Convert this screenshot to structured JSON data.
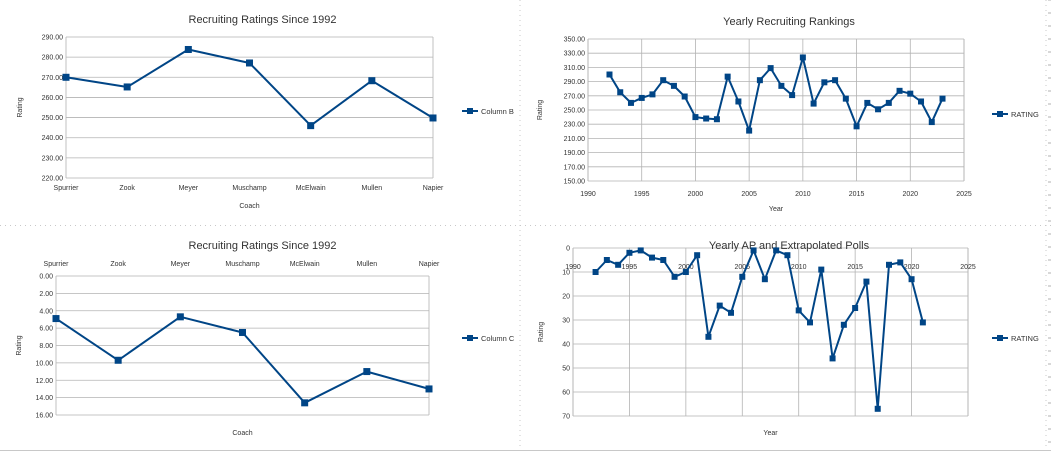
{
  "colors": {
    "series": "#004586",
    "grid": "#b3b3b3",
    "text": "#333333"
  },
  "chart_data": [
    {
      "type": "line",
      "title": "Recruiting Ratings Since 1992",
      "xlabel": "Coach",
      "ylabel": "Rating",
      "categories": [
        "Spurrier",
        "Zook",
        "Meyer",
        "Muschamp",
        "McElwain",
        "Mullen",
        "Napier"
      ],
      "series": [
        {
          "name": "Column B",
          "values": [
            270.0,
            265.2,
            283.8,
            277.1,
            246.0,
            268.3,
            249.8
          ]
        }
      ],
      "ylim": [
        220,
        290
      ],
      "yticks": [
        "220.00",
        "230.00",
        "240.00",
        "250.00",
        "260.00",
        "270.00",
        "280.00",
        "290.00"
      ],
      "grid": true,
      "legend": "right"
    },
    {
      "type": "line",
      "title": "Yearly Recruiting Rankings",
      "xlabel": "Year",
      "ylabel": "Rating",
      "x": [
        1992,
        1993,
        1994,
        1995,
        1996,
        1997,
        1998,
        1999,
        2000,
        2001,
        2002,
        2003,
        2004,
        2005,
        2006,
        2007,
        2008,
        2009,
        2010,
        2011,
        2012,
        2013,
        2014,
        2015,
        2016,
        2017,
        2018,
        2019,
        2020,
        2021,
        2022,
        2023
      ],
      "series": [
        {
          "name": "RATING",
          "values": [
            300,
            275,
            260,
            267,
            272,
            292,
            284,
            269,
            240,
            238,
            237,
            297,
            262,
            221,
            292,
            309,
            284,
            271,
            324,
            259,
            289,
            292,
            266,
            227,
            260,
            251,
            260,
            277,
            273,
            262,
            233,
            266
          ]
        }
      ],
      "xlim": [
        1990,
        2025
      ],
      "xticks": [
        "1990",
        "1995",
        "2000",
        "2005",
        "2010",
        "2015",
        "2020",
        "2025"
      ],
      "ylim": [
        150,
        350
      ],
      "yticks": [
        "150.00",
        "170.00",
        "190.00",
        "210.00",
        "230.00",
        "250.00",
        "270.00",
        "290.00",
        "310.00",
        "330.00",
        "350.00"
      ],
      "grid": true,
      "legend": "right"
    },
    {
      "type": "line",
      "title": "Recruiting Ratings Since 1992",
      "xlabel": "Coach",
      "ylabel": "Rating",
      "categories": [
        "Spurrier",
        "Zook",
        "Meyer",
        "Muschamp",
        "McElwain",
        "Mullen",
        "Napier"
      ],
      "series": [
        {
          "name": "Column C",
          "values": [
            4.9,
            9.7,
            4.7,
            6.5,
            14.6,
            11.0,
            13.0
          ]
        }
      ],
      "ylim": [
        0,
        16
      ],
      "y_reversed": true,
      "x_axis_position": "top",
      "yticks": [
        "0.00",
        "2.00",
        "4.00",
        "6.00",
        "8.00",
        "10.00",
        "12.00",
        "14.00",
        "16.00"
      ],
      "grid": true,
      "legend": "right"
    },
    {
      "type": "line",
      "title": "Yearly AP and Extrapolated Polls",
      "xlabel": "Year",
      "ylabel": "Rating",
      "x": [
        1992,
        1993,
        1994,
        1995,
        1996,
        1997,
        1998,
        1999,
        2000,
        2001,
        2002,
        2003,
        2004,
        2005,
        2006,
        2007,
        2008,
        2009,
        2010,
        2011,
        2012,
        2013,
        2014,
        2015,
        2016,
        2017,
        2018,
        2019,
        2020,
        2021
      ],
      "series": [
        {
          "name": "RATING",
          "values": [
            10,
            5,
            7,
            2,
            1,
            4,
            5,
            12,
            10,
            3,
            37,
            24,
            27,
            12,
            1,
            13,
            1,
            3,
            26,
            31,
            9,
            46,
            32,
            25,
            14,
            67,
            7,
            6,
            13,
            31
          ]
        }
      ],
      "xlim": [
        1990,
        2025
      ],
      "xticks": [
        "1990",
        "1995",
        "2000",
        "2005",
        "2010",
        "2015",
        "2020",
        "2025"
      ],
      "ylim": [
        0,
        70
      ],
      "y_reversed": true,
      "x_axis_position": "top",
      "yticks": [
        "0",
        "10",
        "20",
        "30",
        "40",
        "50",
        "60",
        "70"
      ],
      "grid": true,
      "legend": "right"
    }
  ]
}
